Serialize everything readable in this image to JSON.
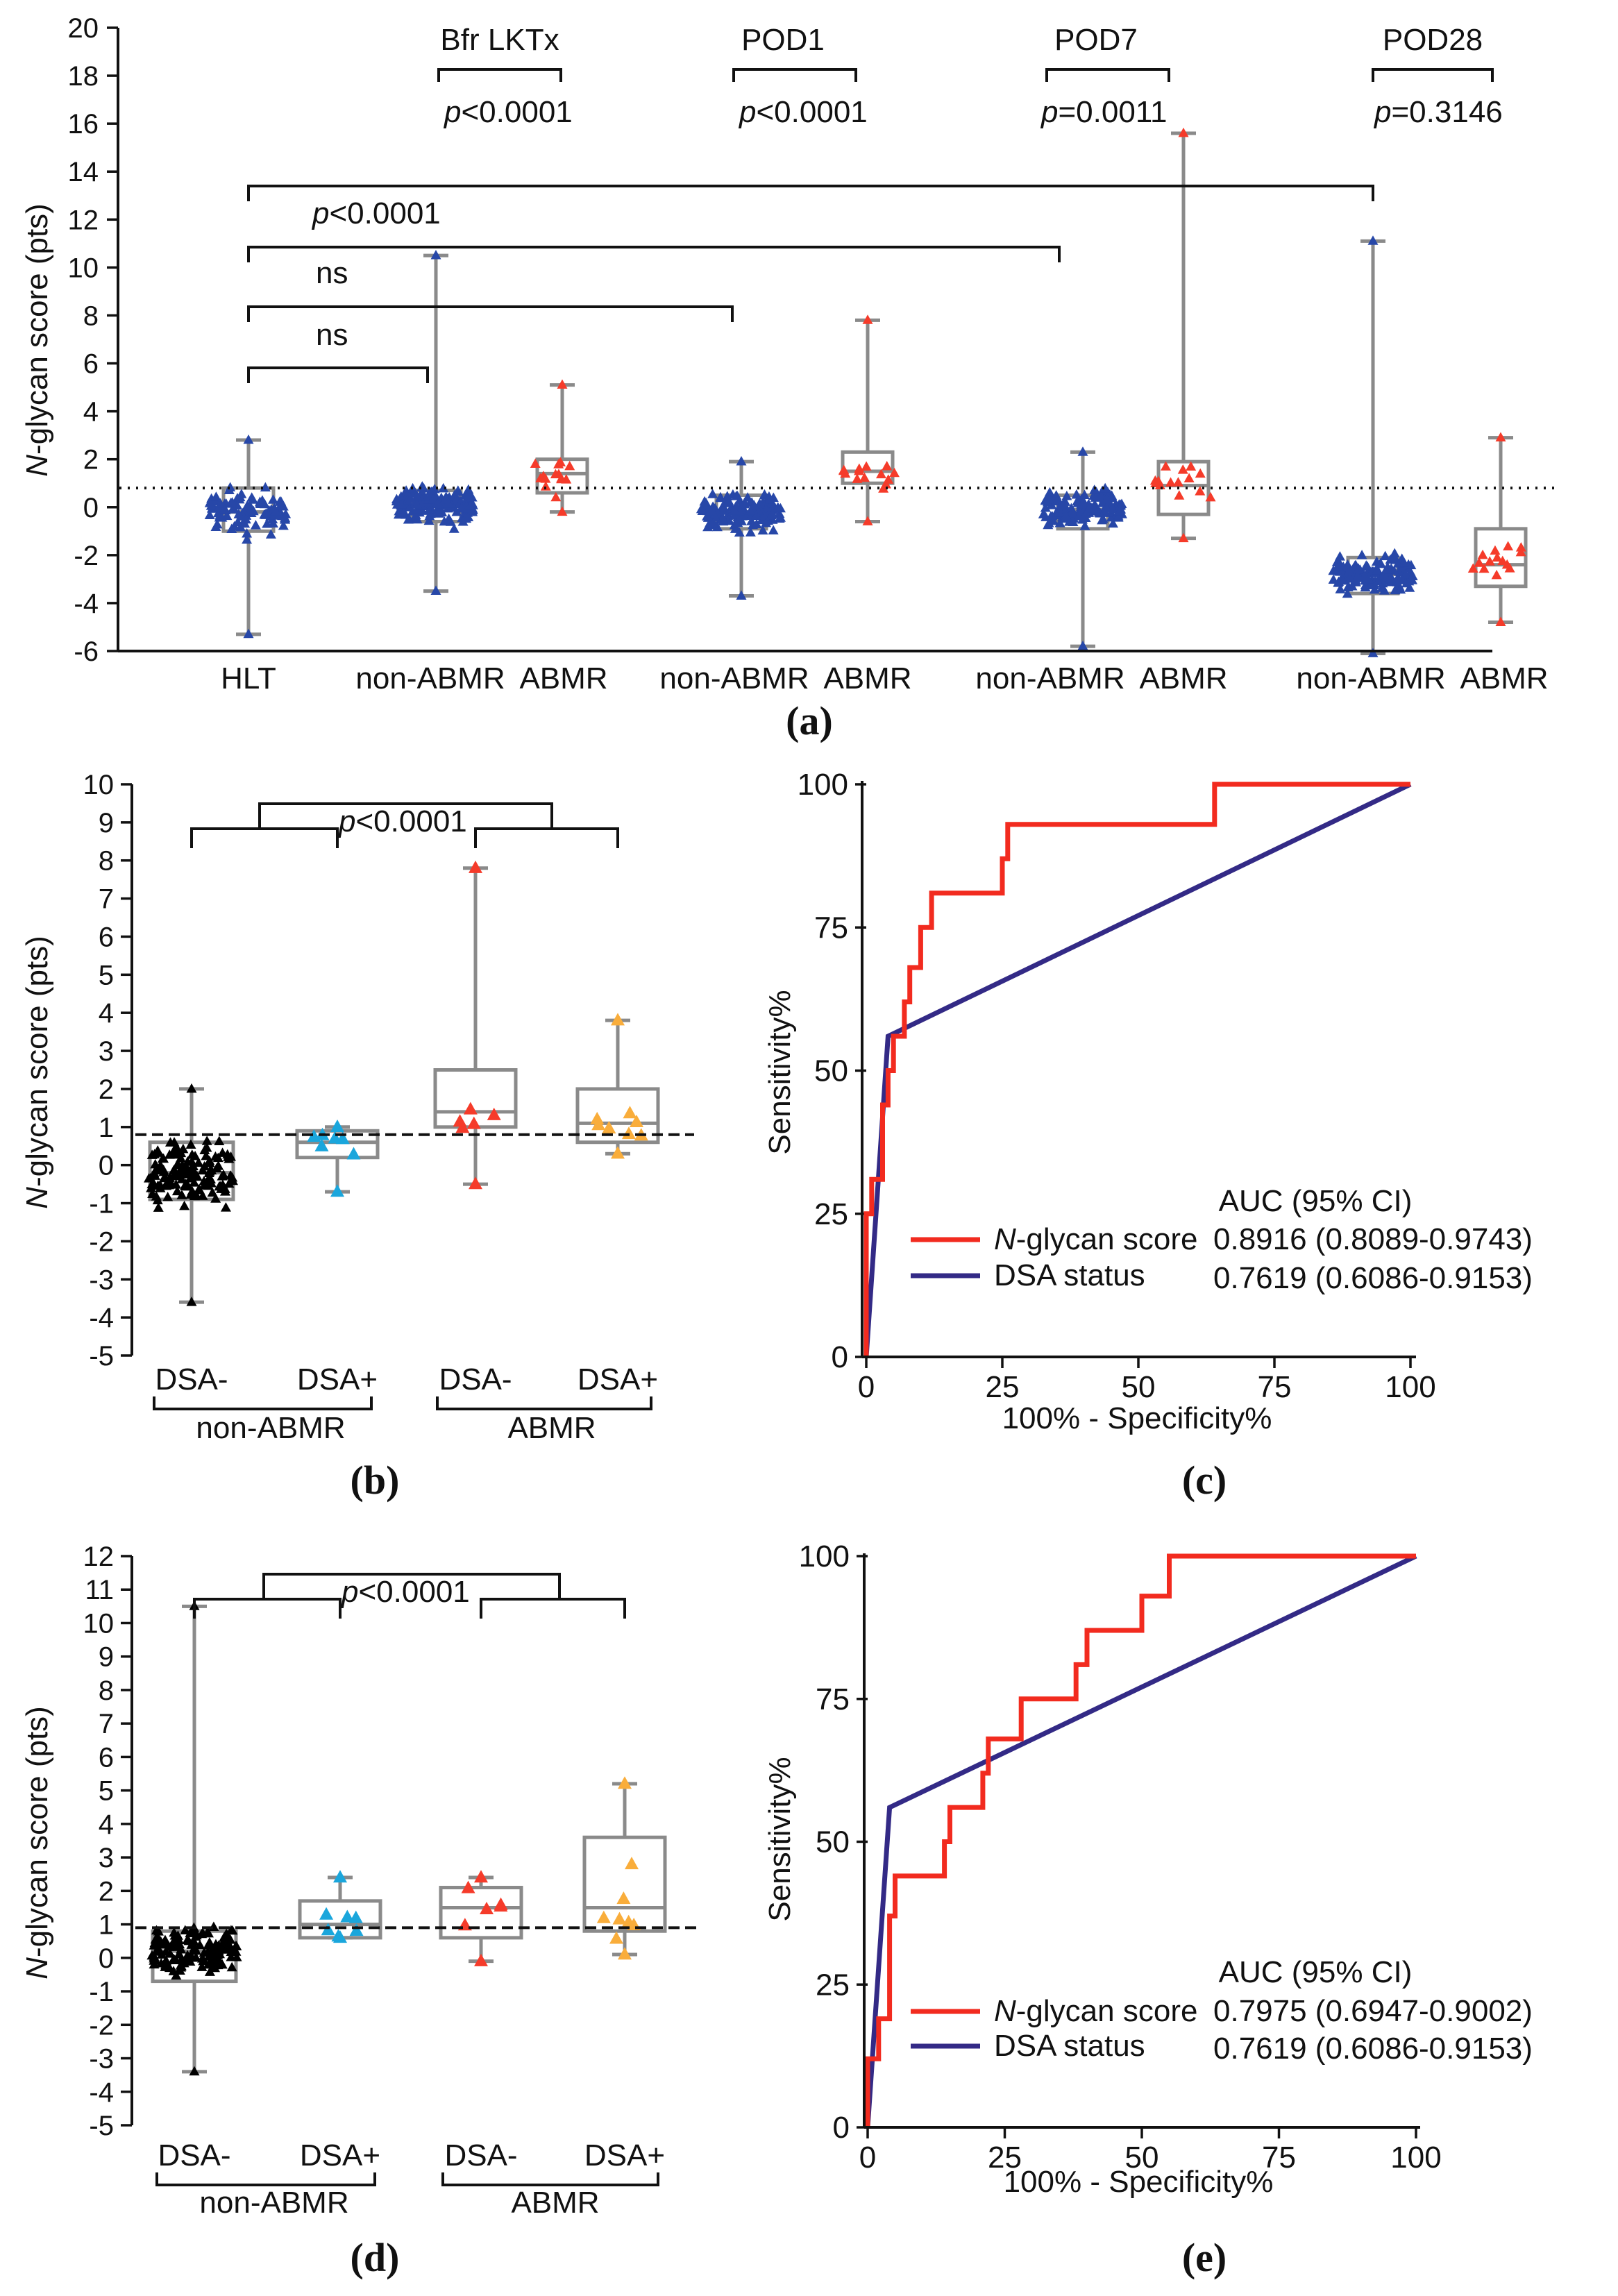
{
  "chart_data": [
    {
      "panel": "(a)",
      "type": "box-scatter",
      "ylabel_italic": "N",
      "ylabel_rest": "-glycan score (pts)",
      "ylim": [
        -6,
        20
      ],
      "yticks": [
        "-6",
        "-4",
        "-2",
        "0",
        "2",
        "4",
        "6",
        "8",
        "10",
        "12",
        "14",
        "16",
        "18",
        "20"
      ],
      "cutoff": 0.8,
      "colors": {
        "non_abmr": "#2747a8",
        "abmr": "#f53b2a",
        "box": "#8a8a8a"
      },
      "groups": [
        {
          "label": "HLT",
          "color": "blue",
          "n": 95,
          "min": -5.3,
          "q1": -1.0,
          "median": -0.2,
          "q3": 0.8,
          "max": 2.8
        },
        {
          "label": "non-ABMR",
          "color": "blue",
          "n": 150,
          "min": -3.5,
          "q1": -0.6,
          "median": 0.1,
          "q3": 0.7,
          "max": 10.5
        },
        {
          "label": "ABMR",
          "color": "red",
          "n": 16,
          "min": -0.2,
          "q1": 0.6,
          "median": 1.4,
          "q3": 2.0,
          "max": 5.1
        },
        {
          "label": "non-ABMR",
          "color": "blue",
          "n": 140,
          "min": -3.7,
          "q1": -0.9,
          "median": -0.2,
          "q3": 0.5,
          "max": 1.9
        },
        {
          "label": "ABMR",
          "color": "red",
          "n": 16,
          "min": -0.6,
          "q1": 1.0,
          "median": 1.5,
          "q3": 2.3,
          "max": 7.8
        },
        {
          "label": "non-ABMR",
          "color": "blue",
          "n": 145,
          "min": -5.8,
          "q1": -0.9,
          "median": -0.1,
          "q3": 0.5,
          "max": 2.3
        },
        {
          "label": "ABMR",
          "color": "red",
          "n": 16,
          "min": -1.3,
          "q1": -0.3,
          "median": 0.9,
          "q3": 1.9,
          "max": 15.6
        },
        {
          "label": "non-ABMR",
          "color": "blue",
          "n": 150,
          "min": -6.1,
          "q1": -3.6,
          "median": -2.8,
          "q3": -2.1,
          "max": 11.1
        },
        {
          "label": "ABMR",
          "color": "red",
          "n": 16,
          "min": -4.8,
          "q1": -3.3,
          "median": -2.4,
          "q3": -0.9,
          "max": 2.9
        }
      ],
      "timepoints": [
        {
          "label": "Bfr LKTx",
          "p_italic": "p",
          "p_rest": "<0.0001"
        },
        {
          "label": "POD1",
          "p_italic": "p",
          "p_rest": "<0.0001"
        },
        {
          "label": "POD7",
          "p_italic": "p",
          "p_rest": "=0.0011"
        },
        {
          "label": "POD28",
          "p_italic": "p",
          "p_rest": "=0.3146"
        }
      ],
      "comparisons": [
        {
          "from": 0,
          "to": 7,
          "label": ""
        },
        {
          "from": 0,
          "to": 5,
          "label_italic": "p",
          "label_rest": "<0.0001"
        },
        {
          "from": 0,
          "to": 3,
          "label": "ns"
        },
        {
          "from": 0,
          "to": 1,
          "label": "ns"
        }
      ]
    },
    {
      "panel": "(b)",
      "type": "box-scatter",
      "ylabel_italic": "N",
      "ylabel_rest": "-glycan score (pts)",
      "ylim": [
        -5,
        10
      ],
      "yticks": [
        "-5",
        "-4",
        "-3",
        "-2",
        "-1",
        "0",
        "1",
        "2",
        "3",
        "4",
        "5",
        "6",
        "7",
        "8",
        "9",
        "10"
      ],
      "cutoff": 0.8,
      "colors": {
        "dsa_neg_nonabmr": "#000000",
        "dsa_pos_nonabmr": "#1aa6dc",
        "dsa_neg_abmr": "#f53b2a",
        "dsa_pos_abmr": "#f9ad3b"
      },
      "groups": [
        {
          "label": "DSA-",
          "n": 140,
          "min": -3.6,
          "q1": -0.9,
          "median": -0.2,
          "q3": 0.6,
          "max": 2.0
        },
        {
          "label": "DSA+",
          "n": 8,
          "min": -0.7,
          "q1": 0.2,
          "median": 0.6,
          "q3": 0.9,
          "max": 1.0
        },
        {
          "label": "DSA-",
          "n": 7,
          "min": -0.5,
          "q1": 1.0,
          "median": 1.4,
          "q3": 2.5,
          "max": 7.8
        },
        {
          "label": "DSA+",
          "n": 9,
          "min": 0.3,
          "q1": 0.6,
          "median": 1.1,
          "q3": 2.0,
          "max": 3.8
        }
      ],
      "group_labels": [
        "non-ABMR",
        "ABMR"
      ],
      "p_italic": "p",
      "p_rest": "<0.0001"
    },
    {
      "panel": "(c)",
      "type": "line",
      "xlabel": "100% - Specificity%",
      "ylabel": "Sensitivity%",
      "xlim": [
        0,
        100
      ],
      "ylim": [
        0,
        100
      ],
      "xticks": [
        "0",
        "25",
        "50",
        "75",
        "100"
      ],
      "yticks": [
        "0",
        "25",
        "50",
        "75",
        "100"
      ],
      "auc_title": "AUC (95% CI)",
      "series": [
        {
          "name_italic": "N",
          "name_rest": "-glycan score",
          "auc": "0.8916 (0.8089-0.9743)",
          "color": "#f22b1f",
          "points": [
            [
              0,
              0
            ],
            [
              0,
              25
            ],
            [
              1,
              25
            ],
            [
              1,
              31
            ],
            [
              3,
              31
            ],
            [
              3,
              44
            ],
            [
              4,
              44
            ],
            [
              4,
              50
            ],
            [
              5,
              50
            ],
            [
              5,
              56
            ],
            [
              7,
              56
            ],
            [
              7,
              62
            ],
            [
              8,
              62
            ],
            [
              8,
              68
            ],
            [
              10,
              68
            ],
            [
              10,
              75
            ],
            [
              12,
              75
            ],
            [
              12,
              81
            ],
            [
              25,
              81
            ],
            [
              25,
              87
            ],
            [
              26,
              87
            ],
            [
              26,
              93
            ],
            [
              64,
              93
            ],
            [
              64,
              100
            ],
            [
              100,
              100
            ]
          ]
        },
        {
          "name": "DSA status",
          "auc": "0.7619 (0.6086-0.9153)",
          "color": "#332a86",
          "points": [
            [
              0,
              0
            ],
            [
              4,
              56
            ],
            [
              100,
              100
            ]
          ]
        }
      ]
    },
    {
      "panel": "(d)",
      "type": "box-scatter",
      "ylabel_italic": "N",
      "ylabel_rest": "-glycan score (pts)",
      "ylim": [
        -5,
        12
      ],
      "yticks": [
        "-5",
        "-4",
        "-3",
        "-2",
        "-1",
        "0",
        "1",
        "2",
        "3",
        "4",
        "5",
        "6",
        "7",
        "8",
        "9",
        "10",
        "11",
        "12"
      ],
      "cutoff": 0.9,
      "colors": {
        "dsa_neg_nonabmr": "#000000",
        "dsa_pos_nonabmr": "#1aa6dc",
        "dsa_neg_abmr": "#f53b2a",
        "dsa_pos_abmr": "#f9ad3b"
      },
      "groups": [
        {
          "label": "DSA-",
          "n": 145,
          "min": -3.4,
          "q1": -0.7,
          "median": 0.2,
          "q3": 0.8,
          "max": 10.5
        },
        {
          "label": "DSA+",
          "n": 8,
          "min": 0.6,
          "q1": 0.6,
          "median": 1.0,
          "q3": 1.7,
          "max": 2.4
        },
        {
          "label": "DSA-",
          "n": 7,
          "min": -0.1,
          "q1": 0.6,
          "median": 1.5,
          "q3": 2.1,
          "max": 2.4
        },
        {
          "label": "DSA+",
          "n": 9,
          "min": 0.1,
          "q1": 0.8,
          "median": 1.5,
          "q3": 3.6,
          "max": 5.2
        }
      ],
      "group_labels": [
        "non-ABMR",
        "ABMR"
      ],
      "p_italic": "p",
      "p_rest": "<0.0001"
    },
    {
      "panel": "(e)",
      "type": "line",
      "xlabel": "100% - Specificity%",
      "ylabel": "Sensitivity%",
      "xlim": [
        0,
        100
      ],
      "ylim": [
        0,
        100
      ],
      "xticks": [
        "0",
        "25",
        "50",
        "75",
        "100"
      ],
      "yticks": [
        "0",
        "25",
        "50",
        "75",
        "100"
      ],
      "auc_title": "AUC (95% CI)",
      "series": [
        {
          "name_italic": "N",
          "name_rest": "-glycan score",
          "auc": "0.7975 (0.6947-0.9002)",
          "color": "#f22b1f",
          "points": [
            [
              0,
              0
            ],
            [
              0,
              12
            ],
            [
              2,
              12
            ],
            [
              2,
              19
            ],
            [
              4,
              19
            ],
            [
              4,
              37
            ],
            [
              5,
              37
            ],
            [
              5,
              44
            ],
            [
              14,
              44
            ],
            [
              14,
              50
            ],
            [
              15,
              50
            ],
            [
              15,
              56
            ],
            [
              21,
              56
            ],
            [
              21,
              62
            ],
            [
              22,
              62
            ],
            [
              22,
              68
            ],
            [
              28,
              68
            ],
            [
              28,
              75
            ],
            [
              38,
              75
            ],
            [
              38,
              81
            ],
            [
              40,
              81
            ],
            [
              40,
              87
            ],
            [
              50,
              87
            ],
            [
              50,
              93
            ],
            [
              55,
              93
            ],
            [
              55,
              100
            ],
            [
              100,
              100
            ]
          ]
        },
        {
          "name": "DSA status",
          "auc": "0.7619 (0.6086-0.9153)",
          "color": "#332a86",
          "points": [
            [
              0,
              0
            ],
            [
              4,
              56
            ],
            [
              100,
              100
            ]
          ]
        }
      ]
    }
  ]
}
